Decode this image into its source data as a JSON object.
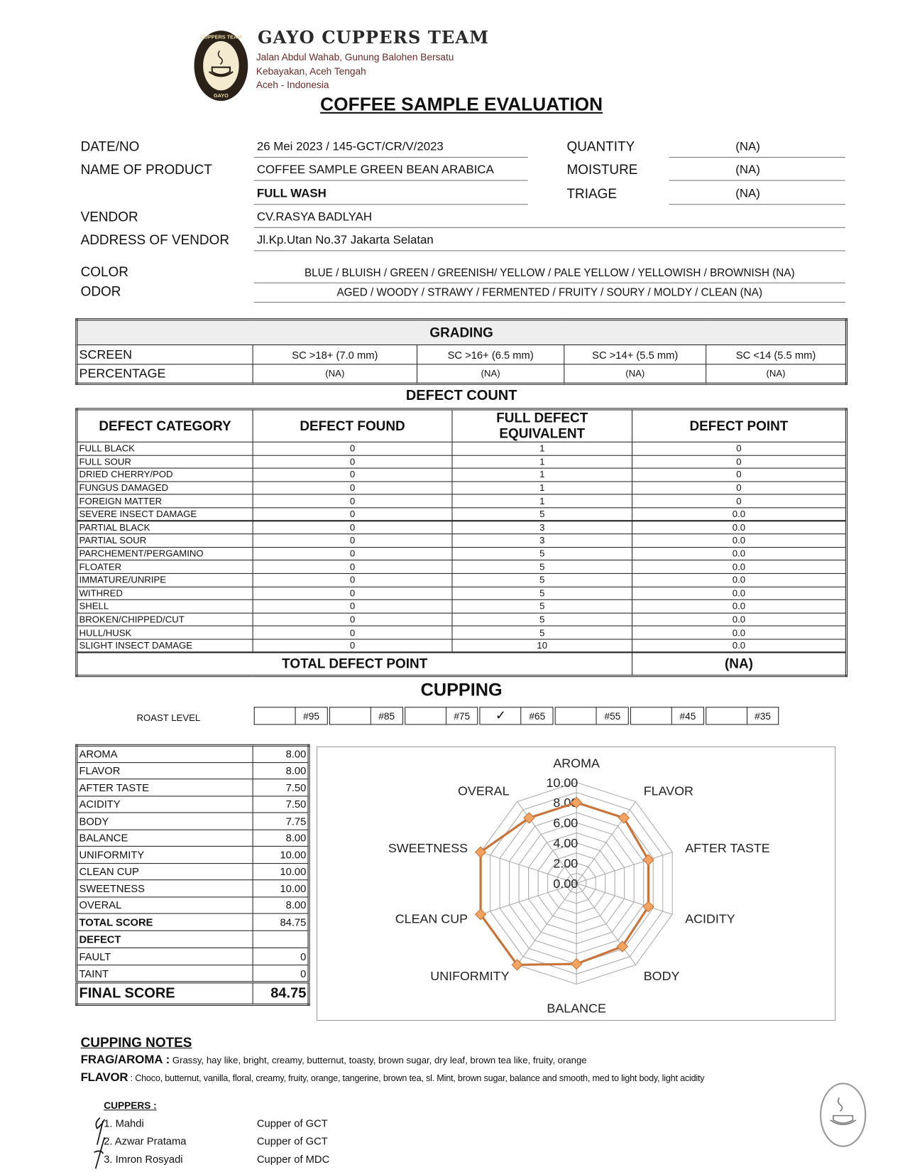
{
  "header": {
    "org_name": "GAYO CUPPERS TEAM",
    "address_lines": [
      "Jalan Abdul Wahab, Gunung Balohen Bersatu",
      "Kebayakan, Aceh Tengah",
      "Aceh - Indonesia"
    ],
    "logo_text": [
      "CUPPERS TEAM",
      "GAYO"
    ],
    "title": "COFFEE SAMPLE EVALUATION",
    "brand_color": "#6b2a2a"
  },
  "info": {
    "date_label": "DATE/NO",
    "date_value": "26 Mei 2023 / 145-GCT/CR/V/2023",
    "product_label": "NAME OF PRODUCT",
    "product_value": "COFFEE SAMPLE  GREEN BEAN ARABICA",
    "process_value": "FULL WASH",
    "vendor_label": "VENDOR",
    "vendor_value": "CV.RASYA BADLYAH",
    "address_label": "ADDRESS OF VENDOR",
    "address_value": "Jl.Kp.Utan No.37 Jakarta Selatan",
    "quantity_label": "QUANTITY",
    "quantity_value": "(NA)",
    "moisture_label": "MOISTURE",
    "moisture_value": "(NA)",
    "triage_label": "TRIAGE",
    "triage_value": "(NA)",
    "color_label": "COLOR",
    "color_value": "BLUE / BLUISH / GREEN / GREENISH/ YELLOW / PALE YELLOW / YELLOWISH / BROWNISH (NA)",
    "odor_label": "ODOR",
    "odor_value": "AGED / WOODY / STRAWY / FERMENTED / FRUITY / SOURY / MOLDY / CLEAN (NA)"
  },
  "grading": {
    "title": "GRADING",
    "screen_label": "SCREEN",
    "percentage_label": "PERCENTAGE",
    "screens": [
      "SC >18+ (7.0 mm)",
      "SC >16+ (6.5 mm)",
      "SC >14+ (5.5 mm)",
      "SC <14 (5.5 mm)"
    ],
    "percentages": [
      "(NA)",
      "(NA)",
      "(NA)",
      "(NA)"
    ]
  },
  "defects": {
    "title": "DEFECT COUNT",
    "columns": [
      "DEFECT CATEGORY",
      "DEFECT FOUND",
      "FULL DEFECT EQUIVALENT",
      "DEFECT POINT"
    ],
    "rows": [
      [
        "FULL BLACK",
        "0",
        "1",
        "0"
      ],
      [
        "FULL SOUR",
        "0",
        "1",
        "0"
      ],
      [
        "DRIED CHERRY/POD",
        "0",
        "1",
        "0"
      ],
      [
        "FUNGUS DAMAGED",
        "0",
        "1",
        "0"
      ],
      [
        "FOREIGN MATTER",
        "0",
        "1",
        "0"
      ],
      [
        "SEVERE INSECT DAMAGE",
        "0",
        "5",
        "0.0"
      ],
      [
        "PARTIAL BLACK",
        "0",
        "3",
        "0.0"
      ],
      [
        "PARTIAL SOUR",
        "0",
        "3",
        "0.0"
      ],
      [
        "PARCHEMENT/PERGAMINO",
        "0",
        "5",
        "0.0"
      ],
      [
        "FLOATER",
        "0",
        "5",
        "0.0"
      ],
      [
        "IMMATURE/UNRIPE",
        "0",
        "5",
        "0.0"
      ],
      [
        "WITHRED",
        "0",
        "5",
        "0.0"
      ],
      [
        "SHELL",
        "0",
        "5",
        "0.0"
      ],
      [
        "BROKEN/CHIPPED/CUT",
        "0",
        "5",
        "0.0"
      ],
      [
        "HULL/HUSK",
        "0",
        "5",
        "0.0"
      ],
      [
        "SLIGHT INSECT DAMAGE",
        "0",
        "10",
        "0.0"
      ]
    ],
    "total_label": "TOTAL DEFECT POINT",
    "total_value": "(NA)"
  },
  "cupping": {
    "title": "CUPPING",
    "roast_label": "ROAST LEVEL",
    "roast_levels": [
      "#95",
      "#85",
      "#75",
      "#65",
      "#55",
      "#45",
      "#35"
    ],
    "roast_selected": "#65",
    "check_mark": "✓",
    "scores": [
      [
        "AROMA",
        "8.00"
      ],
      [
        "FLAVOR",
        "8.00"
      ],
      [
        "AFTER TASTE",
        "7.50"
      ],
      [
        "ACIDITY",
        "7.50"
      ],
      [
        "BODY",
        "7.75"
      ],
      [
        "BALANCE",
        "8.00"
      ],
      [
        "UNIFORMITY",
        "10.00"
      ],
      [
        "CLEAN CUP",
        "10.00"
      ],
      [
        "SWEETNESS",
        "10.00"
      ],
      [
        "OVERAL",
        "8.00"
      ]
    ],
    "total_label": "TOTAL SCORE",
    "total_value": "84.75",
    "defect_label": "DEFECT",
    "fault_label": "FAULT",
    "fault_value": "0",
    "taint_label": "TAINT",
    "taint_value": "0",
    "final_label": "FINAL SCORE",
    "final_value": "84.75"
  },
  "chart_data": {
    "type": "radar",
    "categories": [
      "AROMA",
      "FLAVOR",
      "AFTER TASTE",
      "ACIDITY",
      "BODY",
      "BALANCE",
      "UNIFORMITY",
      "CLEAN CUP",
      "SWEETNESS",
      "OVERAL"
    ],
    "values": [
      8.0,
      8.0,
      7.5,
      7.5,
      7.75,
      8.0,
      10.0,
      10.0,
      10.0,
      8.0
    ],
    "range": [
      0,
      10
    ],
    "tick_labels": [
      "0.00",
      "2.00",
      "4.00",
      "6.00",
      "8.00",
      "10.00"
    ],
    "grid": true,
    "series_color": "#c8733a",
    "marker_color": "#f4a460"
  },
  "notes": {
    "title": "CUPPING  NOTES",
    "aroma_label": "FRAG/AROMA :",
    "aroma_text": "Grassy, hay like, bright, creamy, butternut, toasty, brown sugar, dry leaf, brown tea like, fruity, orange",
    "flavor_label": "FLAVOR",
    "flavor_text": " : Choco, butternut, vanilla, floral, creamy, fruity, orange, tangerine, brown tea, sl. Mint, brown sugar, balance and smooth, med to light body, light acidity"
  },
  "cuppers": {
    "title": "CUPPERS :",
    "list": [
      {
        "name": "1. Mahdi",
        "role": "Cupper of GCT"
      },
      {
        "name": "2. Azwar Pratama",
        "role": "Cupper of GCT"
      },
      {
        "name": "3. Imron Rosyadi",
        "role": "Cupper of MDC"
      }
    ]
  }
}
